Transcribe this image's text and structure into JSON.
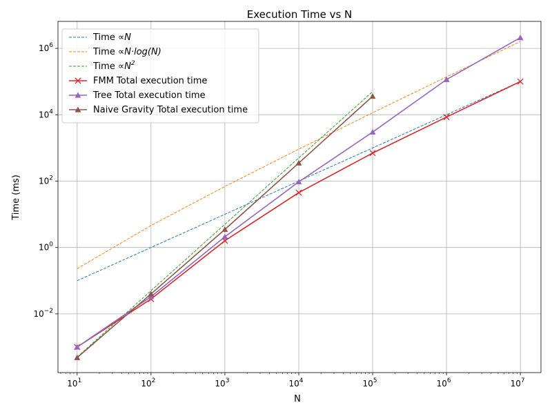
{
  "chart_data": {
    "type": "line",
    "title": "Execution Time vs N",
    "xlabel": "N",
    "ylabel": "Time (ms)",
    "xscale": "log",
    "yscale": "log",
    "xlim": [
      5.5,
      19000000
    ],
    "ylim": [
      0.00017,
      6500000
    ],
    "grid": true,
    "legend_position": "upper-left",
    "x_ticks": [
      {
        "value": 10,
        "base": "10",
        "exp": "1"
      },
      {
        "value": 100,
        "base": "10",
        "exp": "2"
      },
      {
        "value": 1000,
        "base": "10",
        "exp": "3"
      },
      {
        "value": 10000,
        "base": "10",
        "exp": "4"
      },
      {
        "value": 100000,
        "base": "10",
        "exp": "5"
      },
      {
        "value": 1000000,
        "base": "10",
        "exp": "6"
      },
      {
        "value": 10000000,
        "base": "10",
        "exp": "7"
      }
    ],
    "y_ticks": [
      {
        "value": 0.01,
        "base": "10",
        "exp": "−2"
      },
      {
        "value": 1,
        "base": "10",
        "exp": "0"
      },
      {
        "value": 100,
        "base": "10",
        "exp": "2"
      },
      {
        "value": 10000,
        "base": "10",
        "exp": "4"
      },
      {
        "value": 1000000,
        "base": "10",
        "exp": "6"
      }
    ],
    "series": [
      {
        "name": "Time ∝ N",
        "label_plain": "Time ",
        "label_math": "∝N",
        "color": "#1f77b4",
        "style": "dashed",
        "marker": "none",
        "x": [
          10,
          100,
          1000,
          10000,
          100000,
          1000000,
          10000000
        ],
        "y": [
          0.1,
          1,
          10,
          100,
          1000,
          10000,
          100000
        ]
      },
      {
        "name": "Time ∝ N·log(N)",
        "label_plain": "Time ",
        "label_math": "∝N·log(N)",
        "color": "#ff7f0e",
        "style": "dashed",
        "marker": "none",
        "x": [
          10,
          100,
          1000,
          10000,
          100000,
          1000000,
          10000000
        ],
        "y": [
          0.23,
          4.6,
          69,
          920,
          11500,
          138000,
          1610000
        ]
      },
      {
        "name": "Time ∝ N²",
        "label_plain": "Time ",
        "label_math": "∝N",
        "label_sup": "2",
        "color": "#2ca02c",
        "style": "dashed",
        "marker": "none",
        "x": [
          10,
          100,
          1000,
          10000,
          100000
        ],
        "y": [
          0.0005,
          0.05,
          5,
          500,
          50000
        ]
      },
      {
        "name": "FMM Total execution time",
        "label_plain": "FMM Total execution time",
        "color": "#d62728",
        "style": "solid",
        "marker": "x",
        "x": [
          10,
          100,
          1000,
          10000,
          100000,
          1000000,
          10000000
        ],
        "y": [
          0.001,
          0.028,
          1.6,
          45,
          700,
          8500,
          100000
        ]
      },
      {
        "name": "Tree Total execution time",
        "label_plain": "Tree Total execution time",
        "color": "#9467bd",
        "style": "solid",
        "marker": "triangle",
        "x": [
          10,
          100,
          1000,
          10000,
          100000,
          1000000,
          10000000
        ],
        "y": [
          0.001,
          0.033,
          2.1,
          95,
          3000,
          115000,
          2100000
        ]
      },
      {
        "name": "Naive Gravity Total execution time",
        "label_plain": "Naive Gravity Total execution time",
        "color": "#8c564b",
        "style": "solid",
        "marker": "triangle",
        "x": [
          10,
          100,
          1000,
          10000,
          100000
        ],
        "y": [
          0.00048,
          0.04,
          3.5,
          350,
          36000
        ]
      }
    ]
  }
}
